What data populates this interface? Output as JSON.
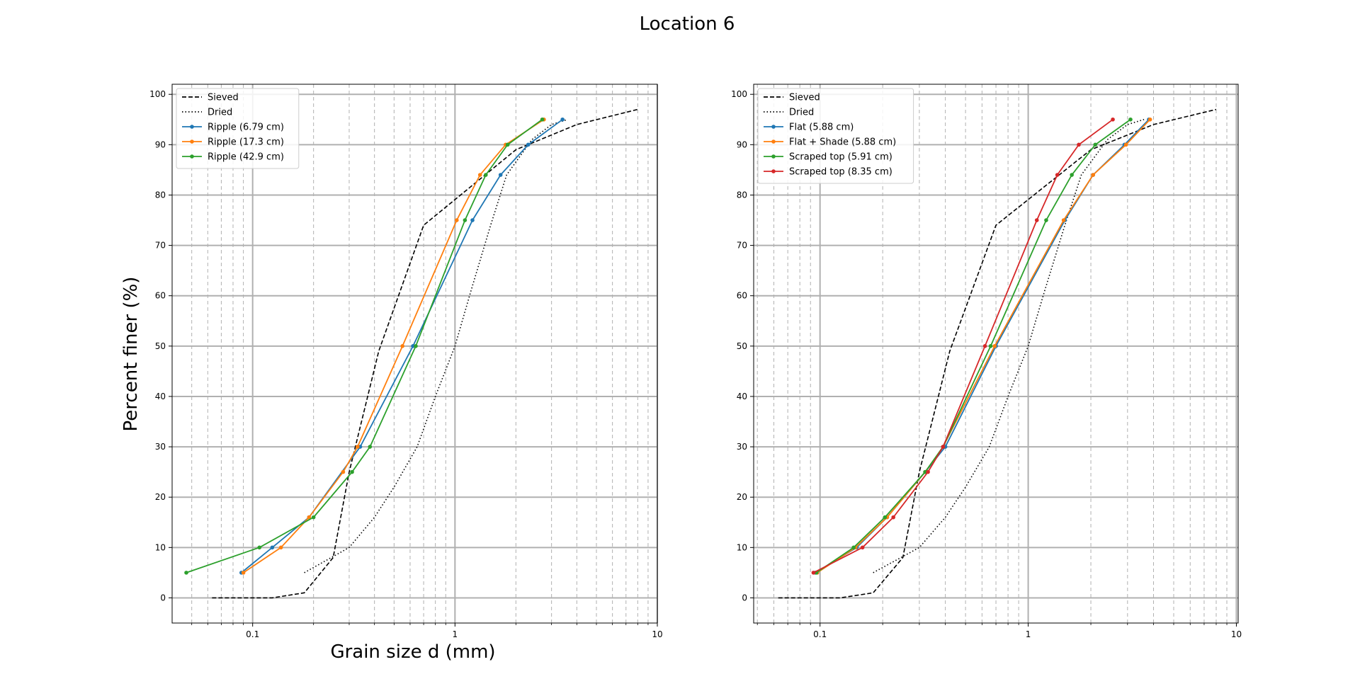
{
  "figure": {
    "title": "Location 6"
  },
  "chart_data": [
    {
      "type": "line",
      "x_scale": "log",
      "xlim": [
        0.04,
        10
      ],
      "ylim": [
        -5,
        102
      ],
      "xlabel": "Grain size d (mm)",
      "ylabel": "Percent finer (%)",
      "x_ticks": [
        0.1,
        1,
        10
      ],
      "x_tick_labels": [
        "0.1",
        "1",
        "10"
      ],
      "y_ticks": [
        0,
        10,
        20,
        30,
        40,
        50,
        60,
        70,
        80,
        90,
        100
      ],
      "y_tick_labels": [
        "0",
        "10",
        "20",
        "30",
        "40",
        "50",
        "60",
        "70",
        "80",
        "90",
        "100"
      ],
      "grid": true,
      "legend": "upper left",
      "series": [
        {
          "name": "Sieved",
          "color": "#000000",
          "style": "dashed",
          "marker": false,
          "x": [
            0.063,
            0.125,
            0.18,
            0.25,
            0.3,
            0.42,
            0.7,
            2.0,
            4.0,
            8.0
          ],
          "y": [
            0,
            0,
            1,
            8,
            25,
            49,
            74,
            89,
            94,
            97
          ]
        },
        {
          "name": "Dried",
          "color": "#000000",
          "style": "dotted",
          "marker": false,
          "x": [
            0.18,
            0.3,
            0.4,
            0.5,
            0.65,
            0.8,
            1.0,
            1.2,
            1.5,
            1.8,
            2.4,
            3.0,
            3.6
          ],
          "y": [
            5,
            10,
            16,
            22,
            30,
            40,
            50,
            61,
            74,
            84,
            91,
            94,
            95
          ]
        },
        {
          "name": "Ripple (6.79 cm)",
          "color": "#1f77b4",
          "style": "solid",
          "marker": true,
          "x": [
            0.088,
            0.125,
            0.19,
            0.34,
            0.62,
            1.22,
            1.68,
            2.3,
            3.4
          ],
          "y": [
            5,
            10,
            16,
            30,
            50,
            75,
            84,
            90,
            95
          ]
        },
        {
          "name": "Ripple (17.3 cm)",
          "color": "#ff7f0e",
          "style": "solid",
          "marker": true,
          "x": [
            0.09,
            0.138,
            0.19,
            0.28,
            0.33,
            0.55,
            1.02,
            1.33,
            1.78,
            2.75
          ],
          "y": [
            5,
            10,
            16,
            25,
            30,
            50,
            75,
            84,
            90,
            95
          ]
        },
        {
          "name": "Ripple (42.9 cm)",
          "color": "#2ca02c",
          "style": "solid",
          "marker": true,
          "x": [
            0.047,
            0.108,
            0.2,
            0.31,
            0.38,
            0.64,
            1.12,
            1.42,
            1.82,
            2.7
          ],
          "y": [
            5,
            10,
            16,
            25,
            30,
            50,
            75,
            84,
            90,
            95
          ]
        }
      ]
    },
    {
      "type": "line",
      "x_scale": "log",
      "xlim": [
        0.048,
        10.2
      ],
      "ylim": [
        -5,
        102
      ],
      "xlabel": "",
      "ylabel": "",
      "x_ticks": [
        0.1,
        1,
        10
      ],
      "x_tick_labels": [
        "0.1",
        "1",
        "10"
      ],
      "y_ticks": [
        0,
        10,
        20,
        30,
        40,
        50,
        60,
        70,
        80,
        90,
        100
      ],
      "y_tick_labels": [
        "0",
        "10",
        "20",
        "30",
        "40",
        "50",
        "60",
        "70",
        "80",
        "90",
        "100"
      ],
      "grid": true,
      "legend": "upper left",
      "series": [
        {
          "name": "Sieved",
          "color": "#000000",
          "style": "dashed",
          "marker": false,
          "x": [
            0.063,
            0.125,
            0.18,
            0.25,
            0.3,
            0.42,
            0.7,
            2.0,
            4.0,
            8.0
          ],
          "y": [
            0,
            0,
            1,
            8,
            25,
            49,
            74,
            89,
            94,
            97
          ]
        },
        {
          "name": "Dried",
          "color": "#000000",
          "style": "dotted",
          "marker": false,
          "x": [
            0.18,
            0.3,
            0.4,
            0.5,
            0.65,
            0.8,
            1.0,
            1.2,
            1.5,
            1.8,
            2.4,
            3.0,
            3.6
          ],
          "y": [
            5,
            10,
            16,
            22,
            30,
            40,
            50,
            61,
            74,
            84,
            91,
            94,
            95
          ]
        },
        {
          "name": "Flat (5.88 cm)",
          "color": "#1f77b4",
          "style": "solid",
          "marker": true,
          "x": [
            0.095,
            0.15,
            0.21,
            0.32,
            0.4,
            0.7,
            1.5,
            2.05,
            2.9,
            3.8
          ],
          "y": [
            5,
            10,
            16,
            25,
            30,
            50,
            75,
            84,
            90,
            95
          ]
        },
        {
          "name": "Flat + Shade (5.88 cm)",
          "color": "#ff7f0e",
          "style": "solid",
          "marker": true,
          "x": [
            0.097,
            0.148,
            0.21,
            0.32,
            0.39,
            0.69,
            1.48,
            2.05,
            2.95,
            3.85
          ],
          "y": [
            5,
            10,
            16,
            25,
            30,
            50,
            75,
            84,
            90,
            95
          ]
        },
        {
          "name": "Scraped top (5.91 cm)",
          "color": "#2ca02c",
          "style": "solid",
          "marker": true,
          "x": [
            0.096,
            0.145,
            0.205,
            0.32,
            0.39,
            0.66,
            1.22,
            1.62,
            2.1,
            3.1
          ],
          "y": [
            5,
            10,
            16,
            25,
            30,
            50,
            75,
            84,
            90,
            95
          ]
        },
        {
          "name": "Scraped top (8.35 cm)",
          "color": "#d62728",
          "style": "solid",
          "marker": true,
          "x": [
            0.093,
            0.16,
            0.225,
            0.33,
            0.39,
            0.62,
            1.1,
            1.38,
            1.75,
            2.55
          ],
          "y": [
            5,
            10,
            16,
            25,
            30,
            50,
            75,
            84,
            90,
            95
          ]
        }
      ]
    }
  ]
}
